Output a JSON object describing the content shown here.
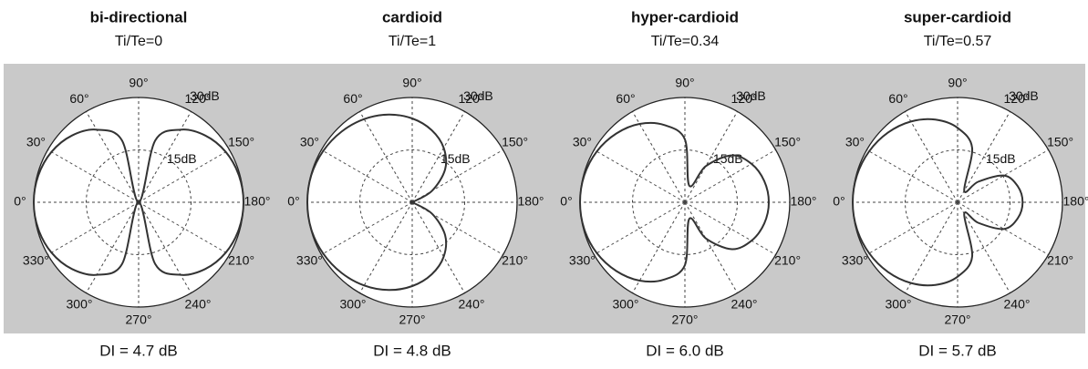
{
  "chart_data": [
    {
      "type": "polar",
      "title": "bi-directional",
      "subtitle": "Ti/Te=0",
      "annotation": "DI = 4.7 dB",
      "theta": [
        0,
        15,
        30,
        45,
        60,
        75,
        90,
        105,
        120,
        135,
        150,
        165,
        180,
        195,
        210,
        225,
        240,
        255,
        270,
        285,
        300,
        315,
        330,
        345
      ],
      "values": [
        30,
        29.7,
        28.8,
        27.0,
        24.0,
        18.3,
        0,
        18.3,
        24.0,
        27.0,
        28.8,
        29.7,
        30,
        29.7,
        28.8,
        27.0,
        24.0,
        18.3,
        0,
        18.3,
        24.0,
        27.0,
        28.8,
        29.7
      ],
      "color": "#333333",
      "rlim": [
        0,
        30
      ],
      "rticks": [
        {
          "value": 15,
          "label": "15dB"
        },
        {
          "value": 30,
          "label": "30dB"
        }
      ],
      "thetaticks": [
        {
          "value": 0,
          "label": "0°"
        },
        {
          "value": 30,
          "label": "30°"
        },
        {
          "value": 60,
          "label": "60°"
        },
        {
          "value": 90,
          "label": "90°"
        },
        {
          "value": 120,
          "label": "120°"
        },
        {
          "value": 150,
          "label": "150°"
        },
        {
          "value": 180,
          "label": "180°"
        },
        {
          "value": 210,
          "label": "210°"
        },
        {
          "value": 240,
          "label": "240°"
        },
        {
          "value": 270,
          "label": "270°"
        },
        {
          "value": 300,
          "label": "300°"
        },
        {
          "value": 330,
          "label": "330°"
        }
      ]
    },
    {
      "type": "polar",
      "title": "cardioid",
      "subtitle": "Ti/Te=1",
      "annotation": "DI = 4.8 dB",
      "theta": [
        0,
        15,
        30,
        45,
        60,
        75,
        90,
        105,
        120,
        135,
        150,
        165,
        180,
        195,
        210,
        225,
        240,
        255,
        270,
        285,
        300,
        315,
        330,
        345
      ],
      "values": [
        30,
        29.9,
        29.4,
        28.6,
        27.5,
        26.0,
        24.0,
        21.4,
        18.0,
        13.3,
        6.5,
        0,
        0,
        0,
        6.5,
        13.3,
        18.0,
        21.4,
        24.0,
        26.0,
        27.5,
        28.6,
        29.4,
        29.9
      ],
      "color": "#333333",
      "rlim": [
        0,
        30
      ],
      "rticks": [
        {
          "value": 15,
          "label": "15dB"
        },
        {
          "value": 30,
          "label": "30dB"
        }
      ],
      "thetaticks": [
        {
          "value": 0,
          "label": "0°"
        },
        {
          "value": 30,
          "label": "30°"
        },
        {
          "value": 60,
          "label": "60°"
        },
        {
          "value": 90,
          "label": "90°"
        },
        {
          "value": 120,
          "label": "120°"
        },
        {
          "value": 150,
          "label": "150°"
        },
        {
          "value": 180,
          "label": "180°"
        },
        {
          "value": 210,
          "label": "210°"
        },
        {
          "value": 240,
          "label": "240°"
        },
        {
          "value": 270,
          "label": "270°"
        },
        {
          "value": 300,
          "label": "300°"
        },
        {
          "value": 330,
          "label": "330°"
        }
      ]
    },
    {
      "type": "polar",
      "title": "hyper-cardioid",
      "subtitle": "Ti/Te=0.34",
      "annotation": "DI = 6.0 dB",
      "theta": [
        0,
        15,
        30,
        45,
        60,
        75,
        90,
        105,
        120,
        135,
        150,
        165,
        180,
        195,
        210,
        225,
        240,
        255,
        270,
        285,
        300,
        315,
        330,
        345
      ],
      "values": [
        30,
        29.8,
        29.1,
        27.8,
        25.9,
        22.9,
        18.0,
        4.9,
        11.9,
        19.0,
        22.0,
        23.5,
        24.0,
        23.5,
        22.0,
        19.0,
        11.9,
        4.9,
        18.0,
        22.9,
        25.9,
        27.8,
        29.1,
        29.8
      ],
      "color": "#333333",
      "rlim": [
        0,
        30
      ],
      "rticks": [
        {
          "value": 15,
          "label": "15dB"
        },
        {
          "value": 30,
          "label": "30dB"
        }
      ],
      "thetaticks": [
        {
          "value": 0,
          "label": "0°"
        },
        {
          "value": 30,
          "label": "30°"
        },
        {
          "value": 60,
          "label": "60°"
        },
        {
          "value": 90,
          "label": "90°"
        },
        {
          "value": 120,
          "label": "120°"
        },
        {
          "value": 150,
          "label": "150°"
        },
        {
          "value": 180,
          "label": "180°"
        },
        {
          "value": 210,
          "label": "210°"
        },
        {
          "value": 240,
          "label": "240°"
        },
        {
          "value": 270,
          "label": "270°"
        },
        {
          "value": 300,
          "label": "300°"
        },
        {
          "value": 330,
          "label": "330°"
        }
      ]
    },
    {
      "type": "polar",
      "title": "super-cardioid",
      "subtitle": "Ti/Te=0.57",
      "annotation": "DI = 5.7 dB",
      "theta": [
        0,
        15,
        30,
        45,
        60,
        75,
        90,
        105,
        120,
        135,
        150,
        165,
        180,
        195,
        210,
        225,
        240,
        255,
        270,
        285,
        300,
        315,
        330,
        345
      ],
      "values": [
        30,
        29.8,
        29.2,
        28.2,
        26.7,
        24.5,
        21.3,
        16.1,
        3.8,
        8.3,
        15.3,
        17.8,
        18.6,
        17.8,
        15.3,
        8.3,
        3.8,
        16.1,
        21.3,
        24.5,
        26.7,
        28.2,
        29.2,
        29.8
      ],
      "color": "#333333",
      "rlim": [
        0,
        30
      ],
      "rticks": [
        {
          "value": 15,
          "label": "15dB"
        },
        {
          "value": 30,
          "label": "30dB"
        }
      ],
      "thetaticks": [
        {
          "value": 0,
          "label": "0°"
        },
        {
          "value": 30,
          "label": "30°"
        },
        {
          "value": 60,
          "label": "60°"
        },
        {
          "value": 90,
          "label": "90°"
        },
        {
          "value": 120,
          "label": "120°"
        },
        {
          "value": 150,
          "label": "150°"
        },
        {
          "value": 180,
          "label": "180°"
        },
        {
          "value": 210,
          "label": "210°"
        },
        {
          "value": 240,
          "label": "240°"
        },
        {
          "value": 270,
          "label": "270°"
        },
        {
          "value": 300,
          "label": "300°"
        },
        {
          "value": 330,
          "label": "330°"
        }
      ]
    }
  ]
}
